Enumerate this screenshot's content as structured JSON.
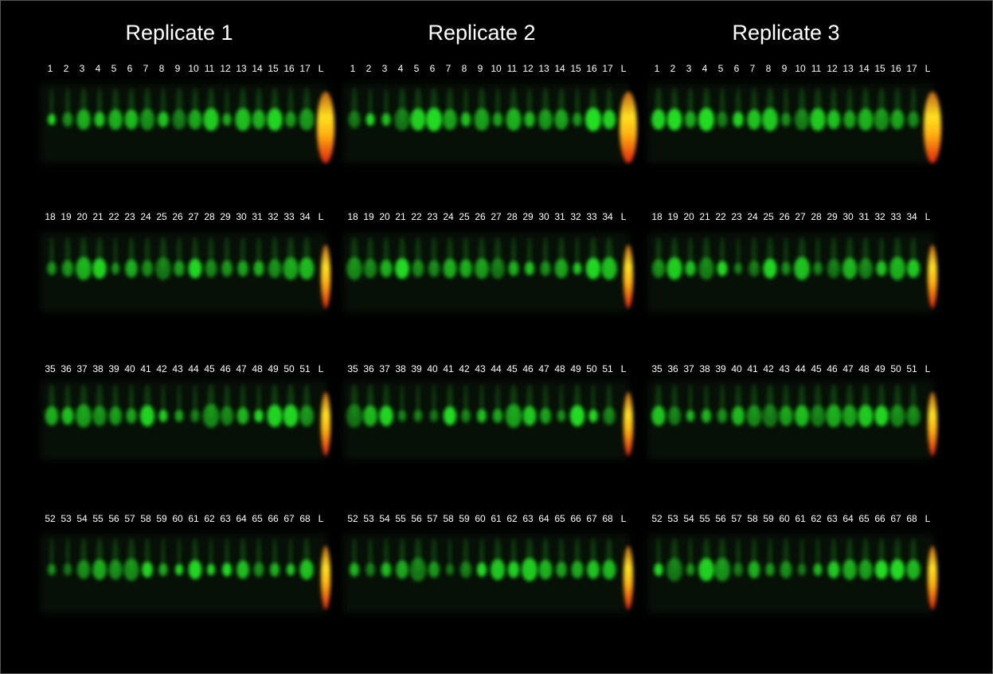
{
  "replicates": [
    {
      "title": "Replicate 1"
    },
    {
      "title": "Replicate 2"
    },
    {
      "title": "Replicate 3"
    }
  ],
  "lane_rows": [
    [
      "1",
      "2",
      "3",
      "4",
      "5",
      "6",
      "7",
      "8",
      "9",
      "10",
      "11",
      "12",
      "13",
      "14",
      "15",
      "16",
      "17",
      "L"
    ],
    [
      "18",
      "19",
      "20",
      "21",
      "22",
      "23",
      "24",
      "25",
      "26",
      "27",
      "28",
      "29",
      "30",
      "31",
      "32",
      "33",
      "34",
      "L"
    ],
    [
      "35",
      "36",
      "37",
      "38",
      "39",
      "40",
      "41",
      "42",
      "43",
      "44",
      "45",
      "46",
      "47",
      "48",
      "49",
      "50",
      "51",
      "L"
    ],
    [
      "52",
      "53",
      "54",
      "55",
      "56",
      "57",
      "58",
      "59",
      "60",
      "61",
      "62",
      "63",
      "64",
      "65",
      "66",
      "67",
      "68",
      "L"
    ]
  ]
}
